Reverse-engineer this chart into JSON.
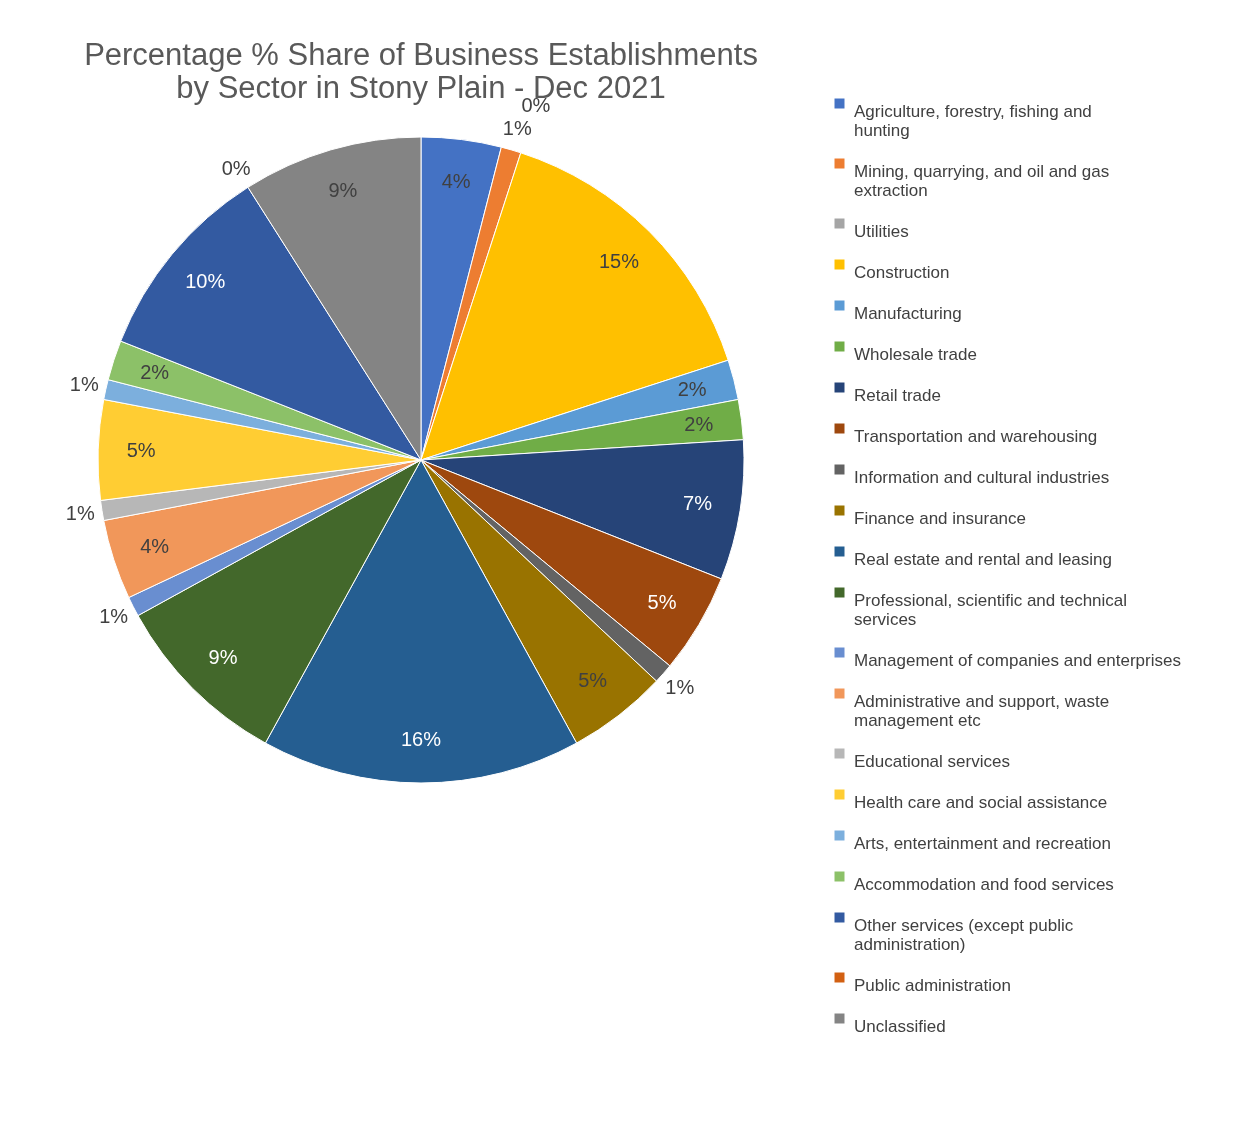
{
  "chart_data": {
    "type": "pie",
    "title": "Percentage % Share of Business Establishments by Sector in Stony Plain - Dec 2021",
    "categories": [
      "Agriculture, forestry, fishing and hunting",
      "Mining, quarrying, and oil and gas extraction",
      "Utilities",
      "Construction",
      "Manufacturing",
      "Wholesale trade",
      "Retail trade",
      "Transportation and warehousing",
      "Information and cultural industries",
      "Finance and insurance",
      "Real estate and rental and leasing",
      "Professional, scientific and technical services",
      "Management of companies and enterprises",
      "Administrative and support, waste management etc",
      "Educational services",
      "Health care and social assistance",
      "Arts, entertainment and recreation",
      "Accommodation and food services",
      "Other services (except public administration)",
      "Public administration",
      "Unclassified"
    ],
    "values": [
      4,
      1,
      0,
      15,
      2,
      2,
      7,
      5,
      1,
      5,
      16,
      9,
      1,
      4,
      1,
      5,
      1,
      2,
      10,
      0,
      9
    ],
    "value_labels": [
      "4%",
      "1%",
      "0%",
      "15%",
      "2%",
      "2%",
      "7%",
      "5%",
      "1%",
      "5%",
      "16%",
      "9%",
      "1%",
      "4%",
      "1%",
      "5%",
      "1%",
      "2%",
      "10%",
      "0%",
      "9%"
    ],
    "colors": [
      "#4472c4",
      "#ed7d31",
      "#a5a5a5",
      "#ffc000",
      "#5b9bd5",
      "#70ad47",
      "#264478",
      "#9e480e",
      "#636363",
      "#997300",
      "#255e91",
      "#43682b",
      "#698ed0",
      "#f1975a",
      "#b7b7b7",
      "#ffcd33",
      "#7cafdd",
      "#8cc168",
      "#335aa1",
      "#d26012",
      "#848484"
    ],
    "legend": "right"
  }
}
